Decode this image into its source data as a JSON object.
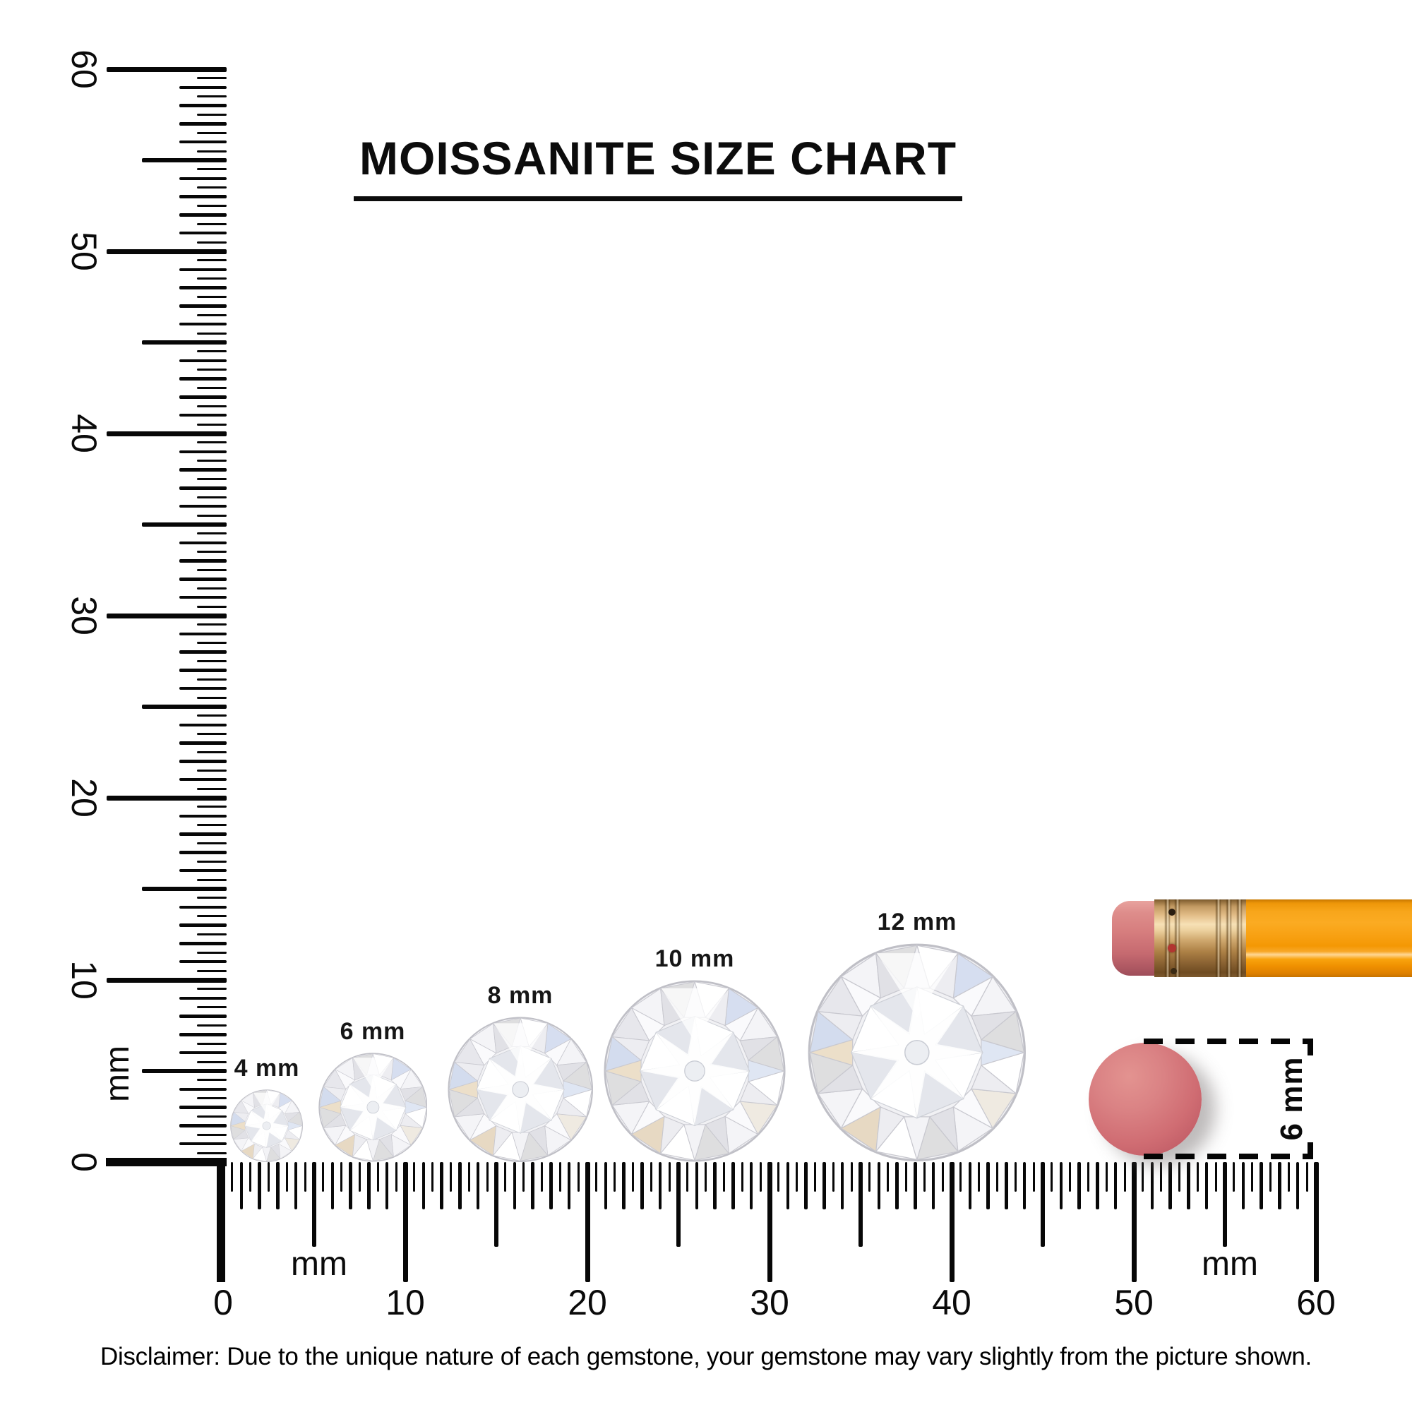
{
  "title": "MOISSANITE SIZE CHART",
  "rulers": {
    "unit": "mm",
    "vertical": {
      "min": 0,
      "max": 60,
      "tick_step_mm": 0.5,
      "major_every_mm": 10,
      "labels": [
        "0",
        "10",
        "20",
        "30",
        "40",
        "50",
        "60"
      ]
    },
    "horizontal": {
      "min": 0,
      "max": 60,
      "tick_step_mm": 0.5,
      "major_every_mm": 10,
      "labels": [
        "0",
        "10",
        "20",
        "30",
        "40",
        "50",
        "60"
      ]
    }
  },
  "gems": [
    {
      "label": "4 mm",
      "size_mm": 4
    },
    {
      "label": "6 mm",
      "size_mm": 6
    },
    {
      "label": "8 mm",
      "size_mm": 8
    },
    {
      "label": "10 mm",
      "size_mm": 10
    },
    {
      "label": "12 mm",
      "size_mm": 12
    }
  ],
  "comparison_objects": {
    "pencil": {
      "name": "pencil with eraser",
      "body_color": "#f8a113",
      "ferrule_color": "#d0a96f",
      "eraser_color": "#d67d7e"
    },
    "eraser_disc": {
      "name": "round pencil eraser",
      "label": "6 mm",
      "size_mm": 6,
      "color": "#d06d73"
    }
  },
  "disclaimer": "Disclaimer: Due to the unique nature of each gemstone, your gemstone may vary slightly from the picture shown.",
  "colors": {
    "ink": "#070707",
    "background": "#ffffff"
  },
  "chart_data": {
    "type": "table",
    "title": "MOISSANITE SIZE CHART",
    "unit": "mm",
    "categories": [
      "4 mm",
      "6 mm",
      "8 mm",
      "10 mm",
      "12 mm"
    ],
    "values": [
      4,
      6,
      8,
      10,
      12
    ],
    "ruler_range_mm": [
      0,
      60
    ],
    "reference_object_mm": 6
  }
}
